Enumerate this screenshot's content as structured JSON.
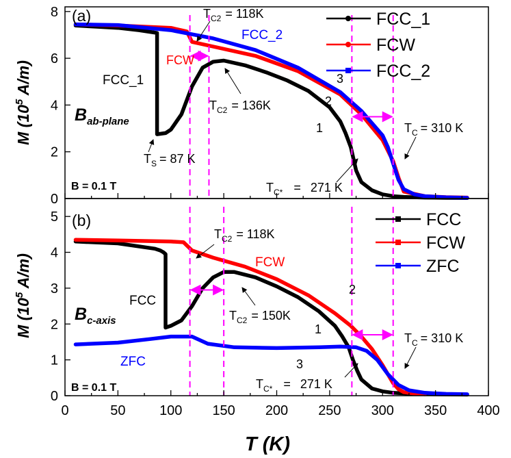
{
  "chart_data": [
    {
      "type": "line",
      "panel_label": "(a)",
      "ylabel": "M (10^5 A/m)",
      "ylabel_prefix": "M (10",
      "ylabel_exp": "5",
      "ylabel_suffix": " A/m)",
      "xlim": [
        0,
        400
      ],
      "ylim": [
        0,
        8.2
      ],
      "yticks": [
        "0",
        "2",
        "4",
        "6",
        "8"
      ],
      "legend_position": "top-right",
      "series": [
        {
          "name": "FCC_1",
          "color": "#000000",
          "x": [
            10,
            30,
            50,
            70,
            85,
            87,
            87,
            95,
            100,
            110,
            120,
            130,
            140,
            150,
            170,
            190,
            210,
            230,
            250,
            260,
            265,
            270,
            275,
            280,
            290,
            300,
            310,
            320,
            340,
            360,
            380
          ],
          "y": [
            7.4,
            7.35,
            7.3,
            7.2,
            7.1,
            7.08,
            2.75,
            2.8,
            2.95,
            3.6,
            4.8,
            5.6,
            5.85,
            5.9,
            5.7,
            5.4,
            5.05,
            4.6,
            3.9,
            3.3,
            2.8,
            2.2,
            1.2,
            0.7,
            0.35,
            0.18,
            0.1,
            0.07,
            0.04,
            0.03,
            0.02
          ]
        },
        {
          "name": "FCW",
          "color": "#ff0000",
          "x": [
            10,
            50,
            100,
            115,
            120,
            140,
            180,
            220,
            260,
            280,
            300,
            310,
            315,
            320,
            340,
            360,
            380
          ],
          "y": [
            7.45,
            7.4,
            7.3,
            7.15,
            6.7,
            6.5,
            6.1,
            5.45,
            4.45,
            3.6,
            2.5,
            1.6,
            0.9,
            0.3,
            0.1,
            0.06,
            0.04
          ]
        },
        {
          "name": "FCC_2",
          "color": "#0000ff",
          "x": [
            10,
            50,
            100,
            140,
            180,
            220,
            260,
            280,
            300,
            305,
            310,
            315,
            320,
            330,
            340,
            360,
            380
          ],
          "y": [
            7.45,
            7.42,
            7.2,
            6.85,
            6.35,
            5.6,
            4.55,
            3.75,
            2.7,
            2.2,
            1.5,
            0.8,
            0.4,
            0.18,
            0.1,
            0.05,
            0.03
          ]
        }
      ],
      "vlines": [
        118,
        136,
        271,
        310
      ],
      "arrows": [
        {
          "from": 118,
          "to": 136,
          "y": 6.1
        },
        {
          "from": 271,
          "to": 310,
          "y": 3.5
        }
      ],
      "annotations": {
        "panel": "(a)",
        "tc2_top": "118K",
        "fcc2_label": "FCC_2",
        "fcw_label": "FCW",
        "fcc1_label": "FCC_1",
        "tc2_mid": "136K",
        "num_3": "3",
        "num_2": "2",
        "num_1": "1",
        "b_field_main": "B",
        "b_field_sub": "ab-plane",
        "ts_value": "= 87 K",
        "tc_value": "=  310 K",
        "tcstar_value": "271 K",
        "b_value": "B = 0.1 T",
        "t_symbol": "T",
        "sub_c2": "C2",
        "sub_s": "S",
        "sub_c": "C",
        "sub_cstar": "C*",
        "equals_118": "= ",
        "equals_136": "= ",
        "equals_cstar": "="
      }
    },
    {
      "type": "line",
      "panel_label": "(b)",
      "xlabel": "T (K)",
      "ylabel_prefix": "M (10",
      "ylabel_exp": "5",
      "ylabel_suffix": " A/m)",
      "xlim": [
        0,
        400
      ],
      "ylim": [
        0,
        5.5
      ],
      "xticks": [
        "0",
        "50",
        "100",
        "150",
        "200",
        "250",
        "300",
        "350",
        "400"
      ],
      "yticks": [
        "0",
        "1",
        "2",
        "3",
        "4",
        "5"
      ],
      "legend_position": "top-right",
      "series": [
        {
          "name": "FCC",
          "color": "#000000",
          "x": [
            10,
            50,
            85,
            90,
            93,
            95,
            95,
            100,
            110,
            120,
            130,
            140,
            150,
            160,
            180,
            200,
            220,
            240,
            255,
            262,
            268,
            272,
            276,
            280,
            290,
            300,
            310,
            330,
            350,
            380
          ],
          "y": [
            4.3,
            4.25,
            4.1,
            4.05,
            4.0,
            3.95,
            1.9,
            1.95,
            2.1,
            2.5,
            3.0,
            3.3,
            3.45,
            3.45,
            3.3,
            3.05,
            2.75,
            2.35,
            1.95,
            1.65,
            1.35,
            1.0,
            0.7,
            0.45,
            0.2,
            0.12,
            0.08,
            0.05,
            0.04,
            0.03
          ]
        },
        {
          "name": "FCW",
          "color": "#ff0000",
          "x": [
            10,
            50,
            100,
            112,
            120,
            140,
            170,
            200,
            230,
            255,
            270,
            280,
            290,
            300,
            305,
            310,
            315,
            320,
            330,
            340
          ],
          "y": [
            4.35,
            4.33,
            4.3,
            4.28,
            4.05,
            3.85,
            3.6,
            3.25,
            2.8,
            2.3,
            1.95,
            1.65,
            1.3,
            0.85,
            0.6,
            0.35,
            0.18,
            0.1,
            0.06,
            0.04
          ]
        },
        {
          "name": "ZFC",
          "color": "#0000ff",
          "x": [
            10,
            50,
            80,
            100,
            120,
            135,
            160,
            200,
            240,
            260,
            275,
            285,
            295,
            305,
            315,
            325,
            340,
            360,
            380
          ],
          "y": [
            1.43,
            1.48,
            1.58,
            1.65,
            1.65,
            1.45,
            1.35,
            1.33,
            1.35,
            1.37,
            1.35,
            1.25,
            1.0,
            0.6,
            0.3,
            0.15,
            0.08,
            0.05,
            0.04
          ]
        }
      ],
      "vlines": [
        118,
        150,
        271,
        310
      ],
      "arrows": [
        {
          "from": 118,
          "to": 150,
          "y": 2.95
        },
        {
          "from": 271,
          "to": 310,
          "y": 1.7
        }
      ],
      "annotations": {
        "panel": "(b)",
        "tc2_top": "118K",
        "fcw_label": "FCW",
        "fcc_label": "FCC",
        "tc2_mid": "150K",
        "num_2": "2",
        "num_1": "1",
        "num_3": "3",
        "zfc_label": "ZFC",
        "b_field_main": "B",
        "b_field_sub": "c-axis",
        "tc_value": "=  310 K",
        "tcstar_value": "271 K",
        "b_value": "B =  0.1 T",
        "t_symbol": "T",
        "sub_c2": "C2",
        "sub_c": "C",
        "sub_cstar": "C*",
        "equals_118": "= ",
        "equals_150": "= ",
        "equals_cstar": "="
      }
    }
  ],
  "colors": {
    "black": "#000000",
    "red": "#ff0000",
    "blue": "#0000ff",
    "guide": "#ff00ff"
  }
}
